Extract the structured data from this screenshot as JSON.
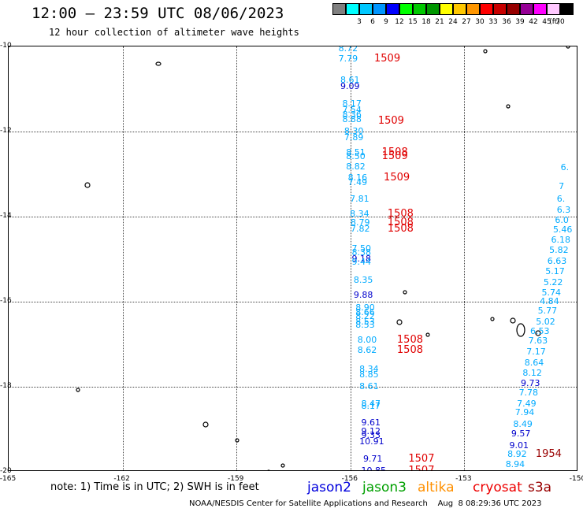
{
  "title": "12:00 — 23:59 UTC 08/06/2023",
  "subtitle": "12 hour collection of altimeter wave heights",
  "scale": {
    "unit_label": "(ft)",
    "swatches": [
      {
        "color": "#808080",
        "label": ""
      },
      {
        "color": "#00ffff",
        "label": "3"
      },
      {
        "color": "#00c8ff",
        "label": "6"
      },
      {
        "color": "#0096ff",
        "label": "9"
      },
      {
        "color": "#0000ff",
        "label": "12"
      },
      {
        "color": "#00ff00",
        "label": "15"
      },
      {
        "color": "#00c800",
        "label": "18"
      },
      {
        "color": "#009600",
        "label": "21"
      },
      {
        "color": "#ffff00",
        "label": "24"
      },
      {
        "color": "#ffc800",
        "label": "27"
      },
      {
        "color": "#ff9600",
        "label": "30"
      },
      {
        "color": "#ff0000",
        "label": "33"
      },
      {
        "color": "#c80000",
        "label": "36"
      },
      {
        "color": "#960000",
        "label": "39"
      },
      {
        "color": "#960096",
        "label": "42"
      },
      {
        "color": "#ff00ff",
        "label": "45"
      },
      {
        "color": "#ffc8ff",
        "label": "70"
      },
      {
        "color": "#000000",
        "label": ""
      }
    ]
  },
  "map": {
    "lon_range": [
      -165,
      -150
    ],
    "lat_range": [
      -20,
      -10
    ],
    "lat_labels": [
      "-10",
      "-12",
      "-14",
      "-16",
      "-18",
      "-20"
    ],
    "lon_labels": [
      "-165",
      "-162",
      "-159",
      "-156",
      "-153",
      "-150"
    ]
  },
  "observations": [
    {
      "v": "8.72",
      "lon": -155.9,
      "lat": -10.05,
      "c": "#00aaff"
    },
    {
      "v": "7.79",
      "lon": -155.9,
      "lat": -10.3,
      "c": "#00aaff"
    },
    {
      "v": "8.61",
      "lon": -155.85,
      "lat": -10.8,
      "c": "#00aaff"
    },
    {
      "v": "9.09",
      "lon": -155.85,
      "lat": -10.95,
      "c": "#0000cc"
    },
    {
      "v": "8.17",
      "lon": -155.8,
      "lat": -11.35,
      "c": "#00aaff"
    },
    {
      "v": "7.54",
      "lon": -155.8,
      "lat": -11.5,
      "c": "#00aaff"
    },
    {
      "v": "8.36",
      "lon": -155.8,
      "lat": -11.62,
      "c": "#00aaff"
    },
    {
      "v": "8.88",
      "lon": -155.8,
      "lat": -11.72,
      "c": "#00aaff"
    },
    {
      "v": "8.30",
      "lon": -155.75,
      "lat": -12.0,
      "c": "#00aaff"
    },
    {
      "v": "7.89",
      "lon": -155.75,
      "lat": -12.15,
      "c": "#00aaff"
    },
    {
      "v": "8.51",
      "lon": -155.7,
      "lat": -12.5,
      "c": "#00aaff"
    },
    {
      "v": "8.50",
      "lon": -155.7,
      "lat": -12.6,
      "c": "#00aaff"
    },
    {
      "v": "8.82",
      "lon": -155.7,
      "lat": -12.83,
      "c": "#00aaff"
    },
    {
      "v": "8.16",
      "lon": -155.65,
      "lat": -13.1,
      "c": "#00aaff"
    },
    {
      "v": "7.49",
      "lon": -155.65,
      "lat": -13.2,
      "c": "#00aaff"
    },
    {
      "v": "7.81",
      "lon": -155.6,
      "lat": -13.6,
      "c": "#00aaff"
    },
    {
      "v": "8.34",
      "lon": -155.6,
      "lat": -13.95,
      "c": "#00aaff"
    },
    {
      "v": "8.79",
      "lon": -155.58,
      "lat": -14.15,
      "c": "#00aaff"
    },
    {
      "v": "7.82",
      "lon": -155.58,
      "lat": -14.3,
      "c": "#00aaff"
    },
    {
      "v": "7.50",
      "lon": -155.55,
      "lat": -14.75,
      "c": "#00aaff"
    },
    {
      "v": "8.38",
      "lon": -155.55,
      "lat": -14.85,
      "c": "#00aaff"
    },
    {
      "v": "9.18",
      "lon": -155.55,
      "lat": -15.0,
      "c": "#0000cc"
    },
    {
      "v": "9.44",
      "lon": -155.55,
      "lat": -15.08,
      "c": "#00aaff"
    },
    {
      "v": "8.35",
      "lon": -155.5,
      "lat": -15.5,
      "c": "#00aaff"
    },
    {
      "v": "9.88",
      "lon": -155.5,
      "lat": -15.85,
      "c": "#0000cc"
    },
    {
      "v": "8.90",
      "lon": -155.45,
      "lat": -16.15,
      "c": "#00aaff"
    },
    {
      "v": "8.66",
      "lon": -155.45,
      "lat": -16.25,
      "c": "#00aaff"
    },
    {
      "v": "8.22",
      "lon": -155.45,
      "lat": -16.35,
      "c": "#00aaff"
    },
    {
      "v": "8.53",
      "lon": -155.45,
      "lat": -16.48,
      "c": "#00aaff"
    },
    {
      "v": "8.53",
      "lon": -155.45,
      "lat": -16.55,
      "c": "#00aaff"
    },
    {
      "v": "8.00",
      "lon": -155.4,
      "lat": -16.9,
      "c": "#00aaff"
    },
    {
      "v": "8.62",
      "lon": -155.4,
      "lat": -17.15,
      "c": "#00aaff"
    },
    {
      "v": "8.34",
      "lon": -155.35,
      "lat": -17.6,
      "c": "#00aaff"
    },
    {
      "v": "8.85",
      "lon": -155.35,
      "lat": -17.72,
      "c": "#00aaff"
    },
    {
      "v": "8.61",
      "lon": -155.35,
      "lat": -18.0,
      "c": "#00aaff"
    },
    {
      "v": "8.47",
      "lon": -155.3,
      "lat": -18.4,
      "c": "#00aaff"
    },
    {
      "v": "8.17",
      "lon": -155.3,
      "lat": -18.47,
      "c": "#00aaff"
    },
    {
      "v": "9.61",
      "lon": -155.3,
      "lat": -18.85,
      "c": "#0000cc"
    },
    {
      "v": "9.12",
      "lon": -155.3,
      "lat": -19.05,
      "c": "#0000cc"
    },
    {
      "v": "9.33",
      "lon": -155.3,
      "lat": -19.15,
      "c": "#0000cc"
    },
    {
      "v": "10.91",
      "lon": -155.35,
      "lat": -19.3,
      "c": "#0000cc"
    },
    {
      "v": "9.71",
      "lon": -155.25,
      "lat": -19.7,
      "c": "#0000cc"
    },
    {
      "v": "10.85",
      "lon": -155.3,
      "lat": -19.98,
      "c": "#0000cc"
    },
    {
      "v": "6.",
      "lon": -150.05,
      "lat": -12.85,
      "c": "#00aaff"
    },
    {
      "v": "7",
      "lon": -150.1,
      "lat": -13.3,
      "c": "#00aaff"
    },
    {
      "v": "6.",
      "lon": -150.15,
      "lat": -13.6,
      "c": "#00aaff"
    },
    {
      "v": "6.3",
      "lon": -150.15,
      "lat": -13.85,
      "c": "#00aaff"
    },
    {
      "v": "6.0",
      "lon": -150.2,
      "lat": -14.1,
      "c": "#00aaff"
    },
    {
      "v": "5.46",
      "lon": -150.25,
      "lat": -14.32,
      "c": "#00aaff"
    },
    {
      "v": "6.18",
      "lon": -150.3,
      "lat": -14.55,
      "c": "#00aaff"
    },
    {
      "v": "5.82",
      "lon": -150.35,
      "lat": -14.8,
      "c": "#00aaff"
    },
    {
      "v": "6.63",
      "lon": -150.4,
      "lat": -15.05,
      "c": "#00aaff"
    },
    {
      "v": "5.17",
      "lon": -150.45,
      "lat": -15.3,
      "c": "#00aaff"
    },
    {
      "v": "5.22",
      "lon": -150.5,
      "lat": -15.55,
      "c": "#00aaff"
    },
    {
      "v": "5.74",
      "lon": -150.55,
      "lat": -15.8,
      "c": "#00aaff"
    },
    {
      "v": "4.84",
      "lon": -150.6,
      "lat": -16.0,
      "c": "#00aaff"
    },
    {
      "v": "5.77",
      "lon": -150.65,
      "lat": -16.23,
      "c": "#00aaff"
    },
    {
      "v": "5.02",
      "lon": -150.7,
      "lat": -16.48,
      "c": "#00aaff"
    },
    {
      "v": "6.53",
      "lon": -150.85,
      "lat": -16.7,
      "c": "#00aaff"
    },
    {
      "v": "7.63",
      "lon": -150.9,
      "lat": -16.92,
      "c": "#00aaff"
    },
    {
      "v": "7.17",
      "lon": -150.95,
      "lat": -17.18,
      "c": "#00aaff"
    },
    {
      "v": "8.64",
      "lon": -151.0,
      "lat": -17.45,
      "c": "#00aaff"
    },
    {
      "v": "8.12",
      "lon": -151.05,
      "lat": -17.68,
      "c": "#00aaff"
    },
    {
      "v": "9.73",
      "lon": -151.1,
      "lat": -17.92,
      "c": "#0000cc"
    },
    {
      "v": "7.78",
      "lon": -151.15,
      "lat": -18.15,
      "c": "#00aaff"
    },
    {
      "v": "7.49",
      "lon": -151.2,
      "lat": -18.4,
      "c": "#00aaff"
    },
    {
      "v": "7.94",
      "lon": -151.25,
      "lat": -18.62,
      "c": "#00aaff"
    },
    {
      "v": "8.49",
      "lon": -151.3,
      "lat": -18.88,
      "c": "#00aaff"
    },
    {
      "v": "9.57",
      "lon": -151.35,
      "lat": -19.12,
      "c": "#0000cc"
    },
    {
      "v": "9.01",
      "lon": -151.4,
      "lat": -19.38,
      "c": "#0000cc"
    },
    {
      "v": "8.92",
      "lon": -151.45,
      "lat": -19.6,
      "c": "#00aaff"
    },
    {
      "v": "8.94",
      "lon": -151.5,
      "lat": -19.83,
      "c": "#00aaff"
    }
  ],
  "times": [
    {
      "t": "1509",
      "lon": -155.0,
      "lat": -10.3
    },
    {
      "t": "1509",
      "lon": -154.9,
      "lat": -11.75
    },
    {
      "t": "1508",
      "lon": -154.8,
      "lat": -12.5
    },
    {
      "t": "1509",
      "lon": -154.8,
      "lat": -12.6
    },
    {
      "t": "1509",
      "lon": -154.75,
      "lat": -13.1
    },
    {
      "t": "1508",
      "lon": -154.65,
      "lat": -13.95
    },
    {
      "t": "1508",
      "lon": -154.65,
      "lat": -14.15
    },
    {
      "t": "1508",
      "lon": -154.65,
      "lat": -14.3
    },
    {
      "t": "1508",
      "lon": -154.4,
      "lat": -16.9
    },
    {
      "t": "1508",
      "lon": -154.4,
      "lat": -17.15
    },
    {
      "t": "1507",
      "lon": -154.1,
      "lat": -19.7
    },
    {
      "t": "1507",
      "lon": -154.1,
      "lat": -19.98
    },
    {
      "t": "1954",
      "lon": -150.75,
      "lat": -19.6
    }
  ],
  "note": "note:  1) Time is in UTC; 2) SWH is in feet",
  "satellites": [
    {
      "name": "jason2",
      "color": "#0000dd"
    },
    {
      "name": "jason3",
      "color": "#00a000"
    },
    {
      "name": "altika",
      "color": "#ff9000"
    },
    {
      "name": "cryosat",
      "color": "#ee0000"
    },
    {
      "name": "s3a",
      "color": "#990000"
    }
  ],
  "footer": "NOAA/NESDIS Center for Satellite Applications and Research    Aug  8 08:29:36 UTC 2023"
}
